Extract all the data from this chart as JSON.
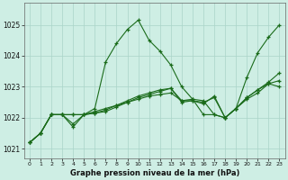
{
  "title": "Graphe pression niveau de la mer (hPa)",
  "background_color": "#ceeee4",
  "grid_color": "#aad4c8",
  "line_color": "#1a6b1a",
  "xlim": [
    -0.5,
    23.5
  ],
  "ylim": [
    1020.7,
    1025.7
  ],
  "yticks": [
    1021,
    1022,
    1023,
    1024,
    1025
  ],
  "xticks": [
    0,
    1,
    2,
    3,
    4,
    5,
    6,
    7,
    8,
    9,
    10,
    11,
    12,
    13,
    14,
    15,
    16,
    17,
    18,
    19,
    20,
    21,
    22,
    23
  ],
  "series": [
    [
      1021.2,
      1021.5,
      1022.1,
      1022.1,
      1021.8,
      1022.1,
      1022.3,
      1023.8,
      1024.4,
      1024.85,
      1025.15,
      1024.5,
      1024.15,
      1023.7,
      1023.0,
      1022.6,
      1022.1,
      1022.1,
      1022.0,
      1022.3,
      1023.3,
      1024.1,
      1024.6,
      1025.0
    ],
    [
      1021.2,
      1021.5,
      1022.1,
      1022.1,
      1022.1,
      1022.1,
      1022.2,
      1022.3,
      1022.4,
      1022.5,
      1022.6,
      1022.7,
      1022.75,
      1022.8,
      1022.55,
      1022.6,
      1022.55,
      1022.1,
      1022.0,
      1022.3,
      1022.6,
      1022.8,
      1023.1,
      1023.2
    ],
    [
      1021.2,
      1021.5,
      1022.1,
      1022.1,
      1022.1,
      1022.1,
      1022.15,
      1022.2,
      1022.35,
      1022.5,
      1022.65,
      1022.75,
      1022.85,
      1022.95,
      1022.55,
      1022.55,
      1022.5,
      1022.65,
      1022.0,
      1022.3,
      1022.65,
      1022.9,
      1023.15,
      1023.45
    ],
    [
      1021.2,
      1021.5,
      1022.1,
      1022.1,
      1021.7,
      1022.1,
      1022.15,
      1022.25,
      1022.4,
      1022.55,
      1022.7,
      1022.8,
      1022.9,
      1022.95,
      1022.5,
      1022.55,
      1022.45,
      1022.7,
      1022.0,
      1022.3,
      1022.65,
      1022.9,
      1023.1,
      1023.0
    ]
  ]
}
